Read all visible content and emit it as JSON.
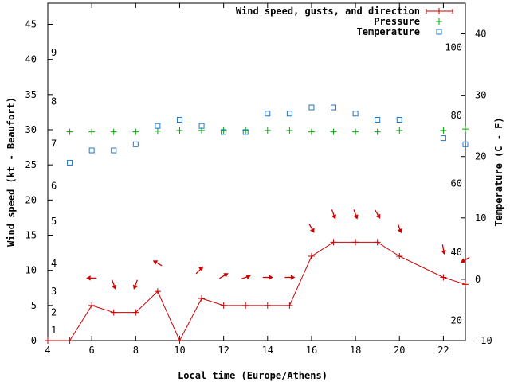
{
  "chart_data": {
    "type": "line",
    "xlabel": "Local time (Europe/Athens)",
    "ylabel_left": "Wind speed (kt - Beaufort)",
    "ylabel_right": "Temperature (C - F)",
    "xlim": [
      4,
      23
    ],
    "xticks": [
      4,
      6,
      8,
      10,
      12,
      14,
      16,
      18,
      20,
      22
    ],
    "ylim_left": [
      0,
      48
    ],
    "yticks_left": [
      0,
      5,
      10,
      15,
      20,
      25,
      30,
      35,
      40,
      45
    ],
    "beaufort_labels": [
      {
        "label": "1",
        "kt": 1.5
      },
      {
        "label": "2",
        "kt": 4
      },
      {
        "label": "3",
        "kt": 7
      },
      {
        "label": "4",
        "kt": 11
      },
      {
        "label": "5",
        "kt": 17
      },
      {
        "label": "6",
        "kt": 22
      },
      {
        "label": "7",
        "kt": 28
      },
      {
        "label": "8",
        "kt": 34
      },
      {
        "label": "9",
        "kt": 41
      }
    ],
    "ylim_right": [
      -10,
      45
    ],
    "yticks_right": [
      -10,
      0,
      10,
      20,
      30,
      40
    ],
    "fahrenheit_labels": [
      {
        "label": "20",
        "c": -6.7
      },
      {
        "label": "40",
        "c": 4.4
      },
      {
        "label": "60",
        "c": 15.6
      },
      {
        "label": "80",
        "c": 26.7
      },
      {
        "label": "100",
        "c": 37.8
      }
    ],
    "legend": [
      {
        "label": "Wind speed, gusts, and direction",
        "color": "#cc0000",
        "marker": "+",
        "style": "line"
      },
      {
        "label": "Pressure",
        "color": "#00aa00",
        "marker": "+",
        "style": "points"
      },
      {
        "label": "Temperature",
        "color": "#2277cc",
        "marker": "square",
        "style": "points"
      }
    ],
    "series": [
      {
        "name": "Wind speed, gusts, and direction",
        "axis": "left",
        "x": [
          4,
          5,
          6,
          7,
          8,
          9,
          10,
          11,
          12,
          13,
          14,
          15,
          16,
          17,
          18,
          19,
          20,
          22,
          23
        ],
        "y": [
          0,
          0,
          5,
          4,
          4,
          7,
          0,
          6,
          5,
          5,
          5,
          5,
          12,
          14,
          14,
          14,
          12,
          9,
          8
        ]
      },
      {
        "name": "Pressure",
        "axis": "left",
        "x": [
          5,
          6,
          7,
          8,
          9,
          10,
          11,
          12,
          13,
          14,
          15,
          16,
          17,
          18,
          19,
          20,
          22,
          23
        ],
        "y": [
          29.7,
          29.7,
          29.7,
          29.7,
          29.8,
          29.9,
          29.9,
          29.9,
          29.9,
          29.9,
          29.9,
          29.7,
          29.7,
          29.7,
          29.7,
          29.9,
          29.9,
          30.1
        ]
      },
      {
        "name": "Temperature",
        "axis": "right",
        "x": [
          5,
          6,
          7,
          8,
          9,
          10,
          11,
          12,
          13,
          14,
          15,
          16,
          17,
          18,
          19,
          20,
          22,
          23
        ],
        "y": [
          19,
          21,
          21,
          22,
          25,
          26,
          25,
          24,
          24,
          27,
          27,
          28,
          28,
          27,
          26,
          26,
          23,
          22
        ]
      }
    ],
    "wind_direction_arrows": [
      {
        "x": 6,
        "dir": 90
      },
      {
        "x": 7,
        "dir": 340
      },
      {
        "x": 8,
        "dir": 20
      },
      {
        "x": 9,
        "dir": 120
      },
      {
        "x": 10.9,
        "dir": 225
      },
      {
        "x": 12,
        "dir": 240
      },
      {
        "x": 13,
        "dir": 250
      },
      {
        "x": 14,
        "dir": 270
      },
      {
        "x": 15,
        "dir": 270
      },
      {
        "x": 16,
        "dir": 330
      },
      {
        "x": 17,
        "dir": 340
      },
      {
        "x": 18,
        "dir": 340
      },
      {
        "x": 19,
        "dir": 330
      },
      {
        "x": 20,
        "dir": 340
      },
      {
        "x": 22,
        "dir": 350
      },
      {
        "x": 23,
        "dir": 60
      }
    ],
    "arrow_y_kt": [
      8.9,
      8,
      8,
      11,
      10,
      9.2,
      9,
      9,
      9,
      16,
      18,
      18,
      18,
      16,
      13,
      11.5
    ]
  }
}
